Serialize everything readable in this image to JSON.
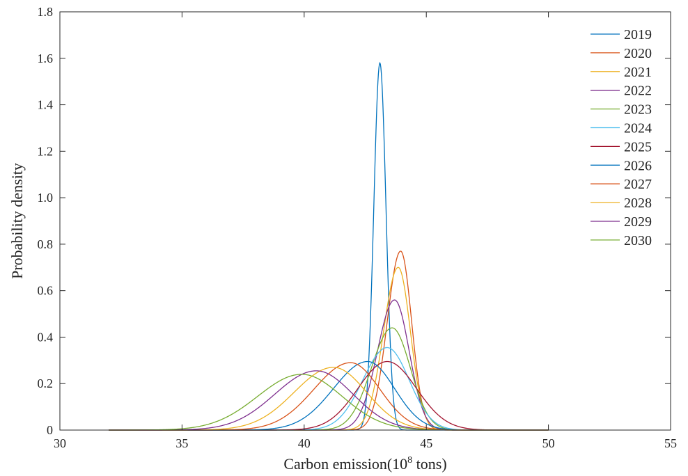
{
  "chart_data": {
    "type": "line",
    "title": "",
    "xlabel_parts": {
      "prefix": "Carbon emission(10",
      "superscript": "8",
      "suffix": " tons)"
    },
    "ylabel": "Probability density",
    "xlim": [
      30,
      55
    ],
    "ylim": [
      0,
      1.8
    ],
    "xticks": [
      30,
      35,
      40,
      45,
      50,
      55
    ],
    "yticks": [
      0,
      0.2,
      0.4,
      0.6,
      0.8,
      1.0,
      1.2,
      1.4,
      1.6,
      1.8
    ],
    "ytick_labels": [
      "0",
      "0.2",
      "0.4",
      "0.6",
      "0.8",
      "1.0",
      "1.2",
      "1.4",
      "1.6",
      "1.8"
    ],
    "grid": false,
    "legend_position": "top-right",
    "series": [
      {
        "name": "2019",
        "color": "#0072BD",
        "peak_x": 43.1,
        "peak_y": 1.58,
        "sigma_left": 0.25,
        "sigma_right": 0.25
      },
      {
        "name": "2020",
        "color": "#D95319",
        "peak_x": 43.95,
        "peak_y": 0.77,
        "sigma_left": 0.55,
        "sigma_right": 0.45
      },
      {
        "name": "2021",
        "color": "#EDB120",
        "peak_x": 43.85,
        "peak_y": 0.7,
        "sigma_left": 0.6,
        "sigma_right": 0.5
      },
      {
        "name": "2022",
        "color": "#7E2F8E",
        "peak_x": 43.7,
        "peak_y": 0.56,
        "sigma_left": 0.7,
        "sigma_right": 0.6
      },
      {
        "name": "2023",
        "color": "#77AC30",
        "peak_x": 43.6,
        "peak_y": 0.44,
        "sigma_left": 0.85,
        "sigma_right": 0.75
      },
      {
        "name": "2024",
        "color": "#4DBEEE",
        "peak_x": 43.4,
        "peak_y": 0.355,
        "sigma_left": 1.0,
        "sigma_right": 0.9
      },
      {
        "name": "2025",
        "color": "#A2142F",
        "peak_x": 43.4,
        "peak_y": 0.295,
        "sigma_left": 1.2,
        "sigma_right": 1.2
      },
      {
        "name": "2026",
        "color": "#0072BD",
        "peak_x": 42.6,
        "peak_y": 0.295,
        "sigma_left": 1.4,
        "sigma_right": 1.1
      },
      {
        "name": "2027",
        "color": "#D95319",
        "peak_x": 41.9,
        "peak_y": 0.29,
        "sigma_left": 1.5,
        "sigma_right": 1.2
      },
      {
        "name": "2028",
        "color": "#EDB120",
        "peak_x": 41.2,
        "peak_y": 0.27,
        "sigma_left": 1.6,
        "sigma_right": 1.35
      },
      {
        "name": "2029",
        "color": "#7E2F8E",
        "peak_x": 40.5,
        "peak_y": 0.255,
        "sigma_left": 1.7,
        "sigma_right": 1.5
      },
      {
        "name": "2030",
        "color": "#77AC30",
        "peak_x": 39.9,
        "peak_y": 0.24,
        "sigma_left": 1.8,
        "sigma_right": 1.65
      }
    ]
  }
}
